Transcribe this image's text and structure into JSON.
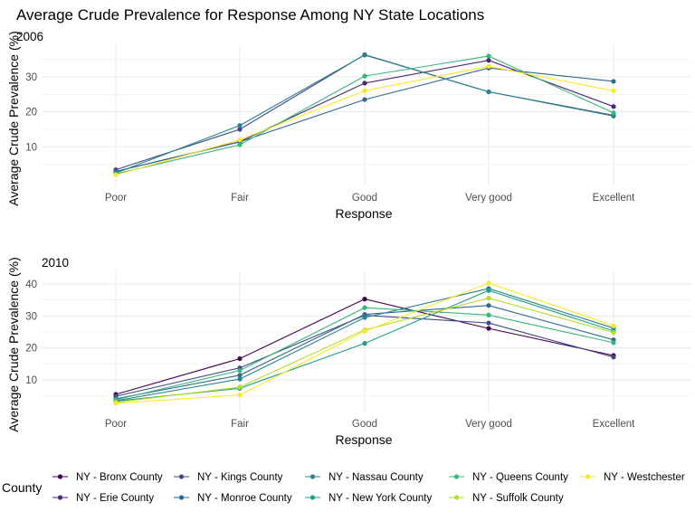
{
  "chart_data": {
    "type": "line",
    "title": "Average Crude Prevalence for Response Among NY State Locations",
    "categories": [
      "Poor",
      "Fair",
      "Good",
      "Very good",
      "Excellent"
    ],
    "legend": {
      "title": "County",
      "position": "bottom",
      "entries": [
        {
          "label": "NY - Bronx County",
          "color": "#440154"
        },
        {
          "label": "NY - Erie County",
          "color": "#482878"
        },
        {
          "label": "NY - Kings County",
          "color": "#3e4a89"
        },
        {
          "label": "NY - Monroe County",
          "color": "#31688e"
        },
        {
          "label": "NY - Nassau County",
          "color": "#26828e"
        },
        {
          "label": "NY - New York County",
          "color": "#1f9e89"
        },
        {
          "label": "NY - Queens County",
          "color": "#35b779"
        },
        {
          "label": "NY - Suffolk County",
          "color": "#b4de2c"
        },
        {
          "label": "NY - Westchester",
          "color": "#fde725"
        }
      ]
    },
    "panels": [
      {
        "label": "2006",
        "xlabel": "Response",
        "ylabel": "Average Crude Prevalence (%)",
        "ylim": [
          -1,
          39
        ],
        "yticks": [
          10,
          20,
          30
        ],
        "series": [
          {
            "name": "NY - Erie County",
            "color": "#482878",
            "values": [
              3.0,
              11.5,
              28.2,
              34.7,
              21.5
            ]
          },
          {
            "name": "NY - Kings County",
            "color": "#3e4a89",
            "values": [
              3.5,
              15.0,
              36.3,
              25.7,
              19.0
            ]
          },
          {
            "name": "NY - Monroe County",
            "color": "#31688e",
            "values": [
              3.0,
              11.4,
              23.5,
              32.5,
              28.7
            ]
          },
          {
            "name": "NY - Nassau County",
            "color": "#26828e",
            "values": [
              2.5,
              16.1,
              36.2,
              25.7,
              18.8
            ]
          },
          {
            "name": "NY - Queens County",
            "color": "#35b779",
            "values": [
              2.3,
              10.6,
              30.2,
              35.9,
              19.7
            ]
          },
          {
            "name": "NY - Westchester",
            "color": "#fde725",
            "values": [
              2.0,
              12.0,
              26.0,
              33.0,
              26.0
            ]
          }
        ]
      },
      {
        "label": "2010",
        "xlabel": "Response",
        "ylabel": "Average Crude Prevalence (%)",
        "ylim": [
          0,
          44
        ],
        "yticks": [
          10,
          20,
          30,
          40
        ],
        "series": [
          {
            "name": "NY - Bronx County",
            "color": "#440154",
            "values": [
              5.4,
              16.6,
              35.3,
              26.1,
              17.6
            ]
          },
          {
            "name": "NY - Kings County",
            "color": "#3e4a89",
            "values": [
              4.8,
              13.7,
              30.2,
              27.8,
              17.1
            ]
          },
          {
            "name": "NY - Monroe County",
            "color": "#31688e",
            "values": [
              4.0,
              11.4,
              30.5,
              33.3,
              22.5
            ]
          },
          {
            "name": "NY - Nassau County",
            "color": "#26828e",
            "values": [
              3.4,
              10.2,
              29.5,
              38.6,
              26.2
            ]
          },
          {
            "name": "NY - New York County",
            "color": "#1f9e89",
            "values": [
              3.3,
              7.3,
              21.4,
              38.0,
              25.3
            ]
          },
          {
            "name": "NY - Queens County",
            "color": "#35b779",
            "values": [
              3.7,
              12.9,
              32.6,
              30.3,
              21.6
            ]
          },
          {
            "name": "NY - Suffolk County",
            "color": "#b4de2c",
            "values": [
              2.9,
              7.7,
              25.6,
              35.6,
              24.8
            ]
          },
          {
            "name": "NY - Westchester",
            "color": "#fde725",
            "values": [
              2.6,
              5.2,
              25.2,
              40.3,
              26.9
            ]
          }
        ]
      }
    ]
  }
}
